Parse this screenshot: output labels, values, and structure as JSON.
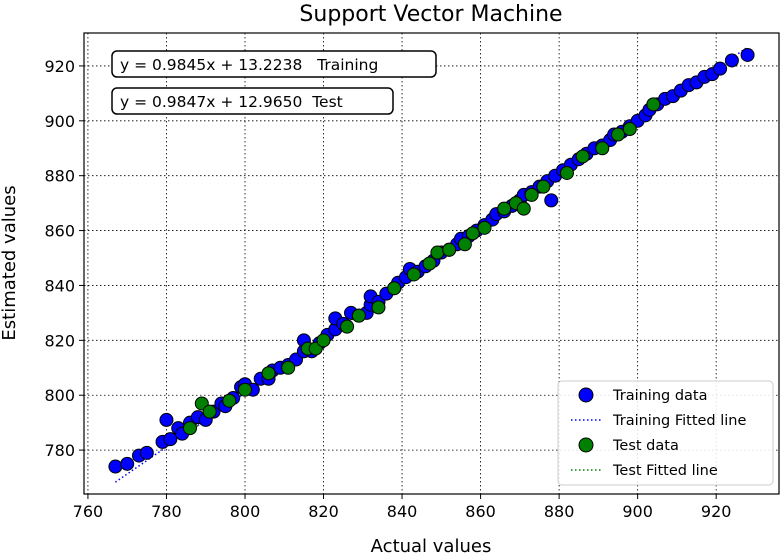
{
  "chart_data": {
    "type": "scatter",
    "title": "Support Vector Machine",
    "xlabel": "Actual values",
    "ylabel": "Estimated values",
    "xlim": [
      759,
      936
    ],
    "ylim": [
      764,
      932
    ],
    "xticks": [
      760,
      780,
      800,
      820,
      840,
      860,
      880,
      900,
      920
    ],
    "yticks": [
      780,
      800,
      820,
      840,
      860,
      880,
      900,
      920
    ],
    "grid": true,
    "legend_position": "lower-right",
    "annotations": [
      "y = 0.9845x + 13.2238   Training",
      "y = 0.9847x + 12.9650  Test"
    ],
    "series": [
      {
        "name": "Training data",
        "kind": "scatter",
        "color": "#0000ff",
        "points": [
          [
            767,
            774
          ],
          [
            770,
            775
          ],
          [
            773,
            778
          ],
          [
            775,
            779
          ],
          [
            779,
            783
          ],
          [
            781,
            784
          ],
          [
            780,
            791
          ],
          [
            783,
            788
          ],
          [
            784,
            786
          ],
          [
            786,
            790
          ],
          [
            788,
            792
          ],
          [
            790,
            791
          ],
          [
            792,
            794
          ],
          [
            794,
            797
          ],
          [
            795,
            796
          ],
          [
            797,
            799
          ],
          [
            799,
            803
          ],
          [
            800,
            804
          ],
          [
            802,
            802
          ],
          [
            804,
            806
          ],
          [
            806,
            806
          ],
          [
            807,
            809
          ],
          [
            809,
            810
          ],
          [
            811,
            811
          ],
          [
            813,
            813
          ],
          [
            815,
            816
          ],
          [
            815,
            820
          ],
          [
            817,
            816
          ],
          [
            819,
            819
          ],
          [
            821,
            822
          ],
          [
            823,
            824
          ],
          [
            823,
            828
          ],
          [
            825,
            826
          ],
          [
            827,
            830
          ],
          [
            829,
            829
          ],
          [
            831,
            830
          ],
          [
            832,
            833
          ],
          [
            832,
            836
          ],
          [
            834,
            834
          ],
          [
            836,
            837
          ],
          [
            838,
            839
          ],
          [
            839,
            841
          ],
          [
            841,
            843
          ],
          [
            842,
            846
          ],
          [
            844,
            845
          ],
          [
            846,
            847
          ],
          [
            848,
            849
          ],
          [
            850,
            852
          ],
          [
            852,
            853
          ],
          [
            854,
            855
          ],
          [
            855,
            857
          ],
          [
            857,
            858
          ],
          [
            859,
            860
          ],
          [
            861,
            862
          ],
          [
            863,
            864
          ],
          [
            864,
            866
          ],
          [
            866,
            867
          ],
          [
            868,
            869
          ],
          [
            870,
            871
          ],
          [
            871,
            873
          ],
          [
            873,
            874
          ],
          [
            875,
            876
          ],
          [
            877,
            878
          ],
          [
            878,
            871
          ],
          [
            879,
            880
          ],
          [
            881,
            882
          ],
          [
            883,
            884
          ],
          [
            885,
            886
          ],
          [
            887,
            888
          ],
          [
            889,
            890
          ],
          [
            891,
            891
          ],
          [
            893,
            893
          ],
          [
            894,
            895
          ],
          [
            896,
            896
          ],
          [
            898,
            898
          ],
          [
            900,
            900
          ],
          [
            902,
            902
          ],
          [
            903,
            904
          ],
          [
            905,
            906
          ],
          [
            907,
            908
          ],
          [
            909,
            909
          ],
          [
            911,
            911
          ],
          [
            913,
            913
          ],
          [
            915,
            914
          ],
          [
            917,
            916
          ],
          [
            919,
            917
          ],
          [
            921,
            919
          ],
          [
            924,
            922
          ],
          [
            928,
            924
          ]
        ]
      },
      {
        "name": "Training Fitted line",
        "kind": "line",
        "color": "#0000ff",
        "slope": 0.9845,
        "intercept": 13.2238,
        "x_range": [
          767,
          928
        ]
      },
      {
        "name": "Test data",
        "kind": "scatter",
        "color": "#008000",
        "points": [
          [
            786,
            788
          ],
          [
            789,
            797
          ],
          [
            791,
            794
          ],
          [
            796,
            798
          ],
          [
            800,
            802
          ],
          [
            806,
            808
          ],
          [
            811,
            810
          ],
          [
            816,
            817
          ],
          [
            818,
            817
          ],
          [
            820,
            820
          ],
          [
            826,
            825
          ],
          [
            829,
            829
          ],
          [
            834,
            832
          ],
          [
            838,
            839
          ],
          [
            843,
            844
          ],
          [
            847,
            848
          ],
          [
            849,
            852
          ],
          [
            852,
            853
          ],
          [
            856,
            855
          ],
          [
            858,
            859
          ],
          [
            861,
            861
          ],
          [
            866,
            868
          ],
          [
            869,
            870
          ],
          [
            871,
            868
          ],
          [
            873,
            873
          ],
          [
            876,
            876
          ],
          [
            882,
            881
          ],
          [
            886,
            887
          ],
          [
            891,
            890
          ],
          [
            895,
            895
          ],
          [
            898,
            897
          ],
          [
            904,
            906
          ]
        ]
      },
      {
        "name": "Test Fitted line",
        "kind": "line",
        "color": "#008000",
        "slope": 0.9847,
        "intercept": 12.965,
        "x_range": [
          786,
          904
        ]
      }
    ]
  }
}
